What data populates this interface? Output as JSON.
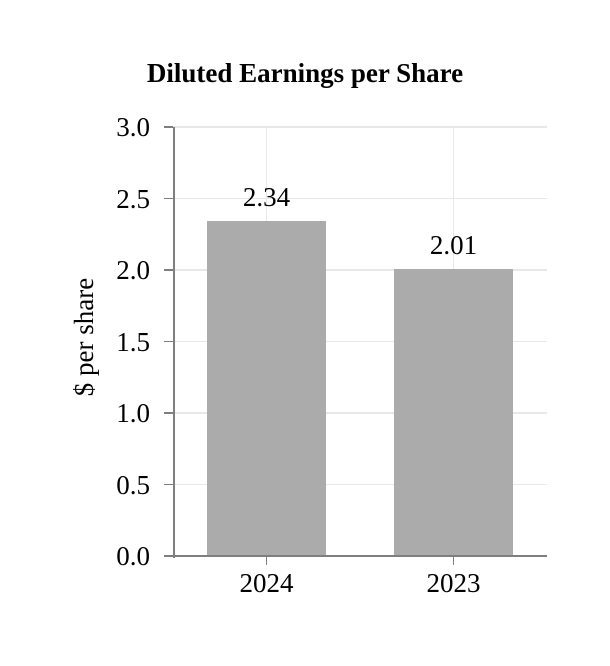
{
  "chart_data": {
    "type": "bar",
    "title": "Diluted Earnings per Share",
    "ylabel": "$ per share",
    "xlabel": "",
    "categories": [
      "2024",
      "2023"
    ],
    "values": [
      2.34,
      2.01
    ],
    "data_labels": [
      "2.34",
      "2.01"
    ],
    "ylim": [
      0.0,
      3.0
    ],
    "yticks": [
      0.0,
      0.5,
      1.0,
      1.5,
      2.0,
      2.5,
      3.0
    ],
    "ytick_labels": [
      "0.0",
      "0.5",
      "1.0",
      "1.5",
      "2.0",
      "2.5",
      "3.0"
    ],
    "legend": "none",
    "grid": {
      "horizontal": true,
      "vertical_at_category_centers": true
    },
    "colors": {
      "bar": "#ABABAB",
      "axis": "#7F7F7F",
      "gridline": "#E8E8E8",
      "text": "#000000",
      "background": "#FFFFFF"
    }
  }
}
